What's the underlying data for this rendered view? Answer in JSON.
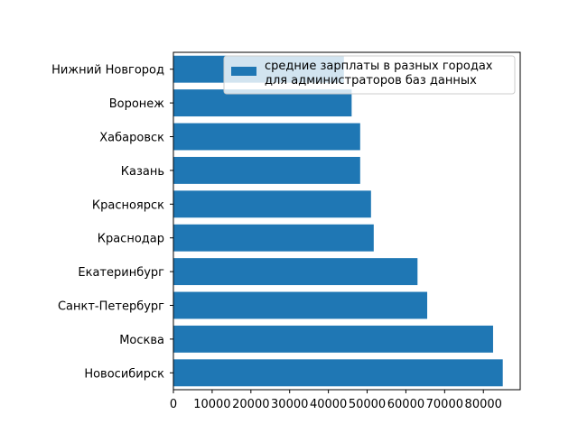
{
  "chart_data": {
    "type": "bar",
    "orientation": "horizontal",
    "categories": [
      "Новосибирск",
      "Москва",
      "Санкт-Петербург",
      "Екатеринбург",
      "Краснодар",
      "Красноярск",
      "Казань",
      "Хабаровск",
      "Воронеж",
      "Нижний Новгород"
    ],
    "values": [
      85000,
      82500,
      65500,
      63000,
      51700,
      51000,
      48200,
      48200,
      46000,
      44000
    ],
    "xlim": [
      0,
      89500
    ],
    "xticks": [
      0,
      10000,
      20000,
      30000,
      40000,
      50000,
      60000,
      70000,
      80000
    ],
    "xtick_labels": [
      "0",
      "10000",
      "20000",
      "30000",
      "40000",
      "50000",
      "60000",
      "70000",
      "80000"
    ],
    "title": "",
    "xlabel": "",
    "ylabel": "",
    "grid": false,
    "legend": {
      "position": "top-right",
      "entries": [
        "средние зарплаты в разных городах\nдля администраторов баз данных"
      ],
      "lines": [
        "средние зарплаты в разных городах",
        "для администраторов баз данных"
      ]
    },
    "bar_color": "#1f77b4"
  }
}
